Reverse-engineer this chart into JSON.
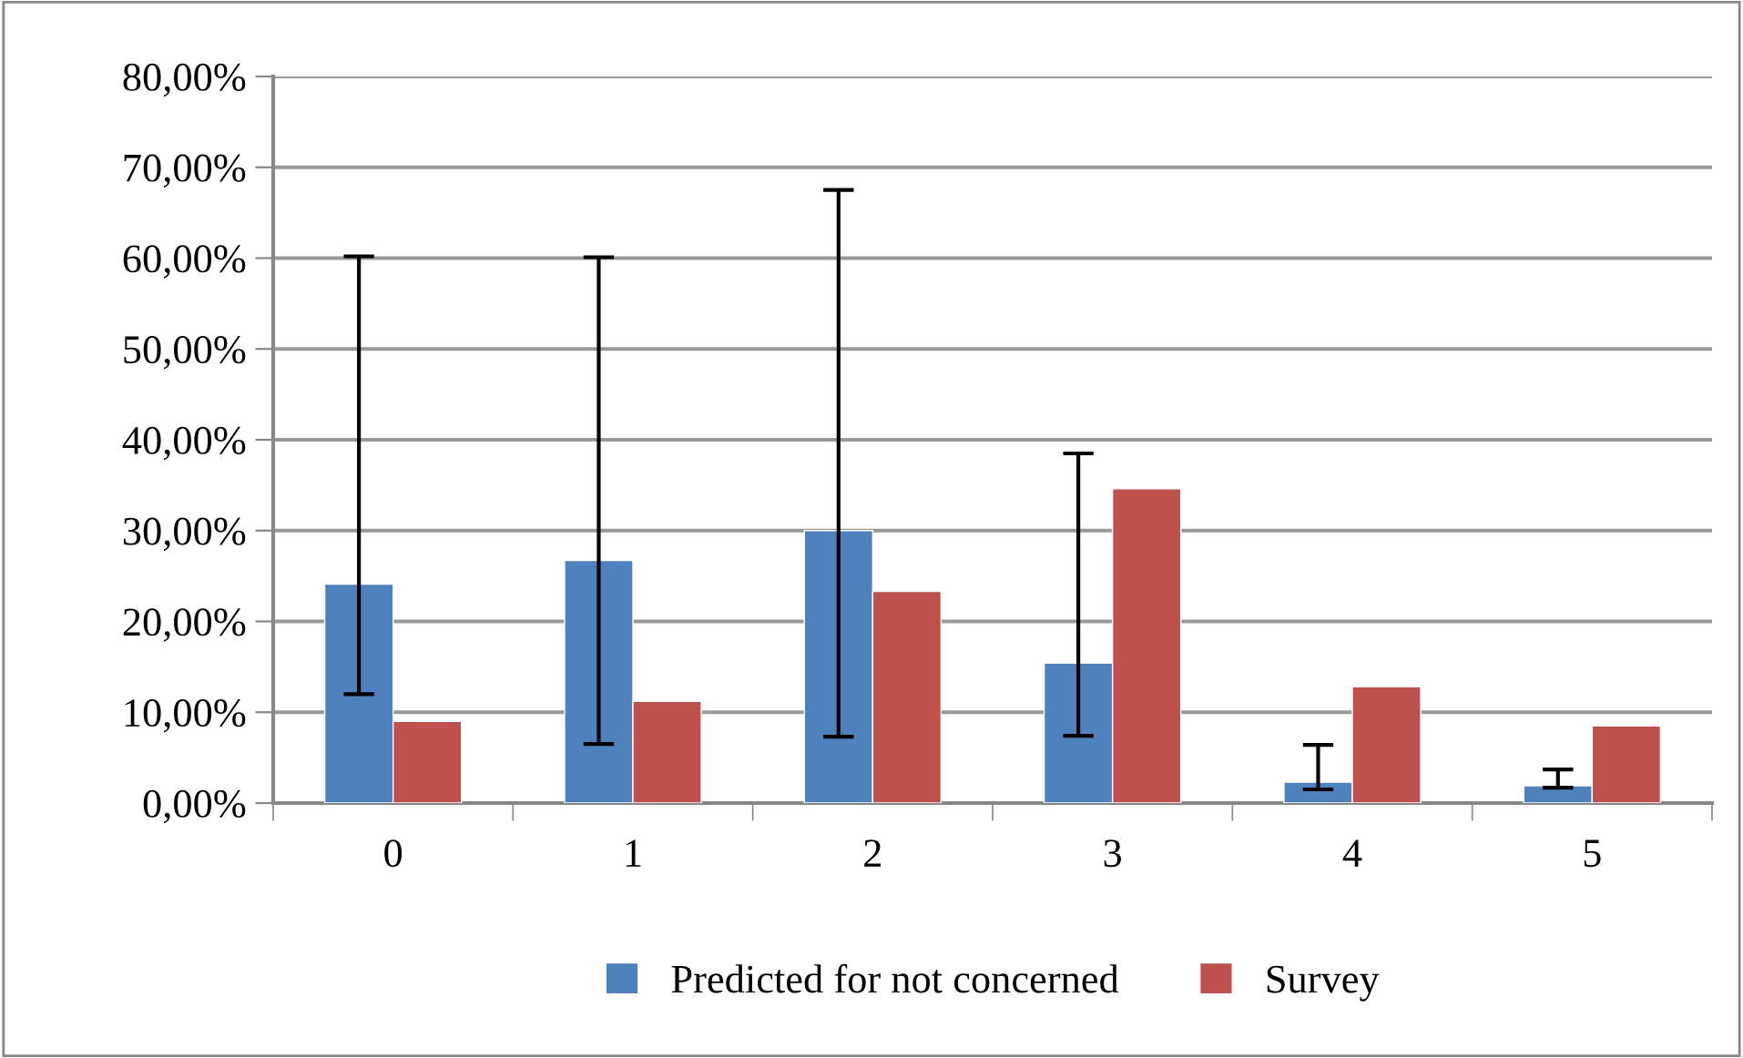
{
  "chart_data": {
    "type": "bar",
    "categories": [
      "0",
      "1",
      "2",
      "3",
      "4",
      "5"
    ],
    "series": [
      {
        "name": "Predicted for not concerned",
        "color": "#4f81bd",
        "values": [
          24.1,
          26.7,
          30.0,
          15.4,
          2.3,
          1.9
        ],
        "errors": [
          [
            12.0,
            60.2
          ],
          [
            6.5,
            60.1
          ],
          [
            7.3,
            67.5
          ],
          [
            7.4,
            38.5
          ],
          [
            1.5,
            6.4
          ],
          [
            1.7,
            3.7
          ]
        ]
      },
      {
        "name": "Survey",
        "color": "#c0504d",
        "values": [
          9.0,
          11.2,
          23.3,
          34.6,
          12.8,
          8.5
        ]
      }
    ],
    "ylim": [
      0,
      80
    ],
    "yticks": [
      {
        "value": 0,
        "label": "0,00%"
      },
      {
        "value": 10,
        "label": "10,00%"
      },
      {
        "value": 20,
        "label": "20,00%"
      },
      {
        "value": 30,
        "label": "30,00%"
      },
      {
        "value": 40,
        "label": "40,00%"
      },
      {
        "value": 50,
        "label": "50,00%"
      },
      {
        "value": 60,
        "label": "60,00%"
      },
      {
        "value": 70,
        "label": "70,00%"
      },
      {
        "value": 80,
        "label": "80,00%"
      }
    ],
    "grid": "y",
    "legend": "bottom"
  }
}
